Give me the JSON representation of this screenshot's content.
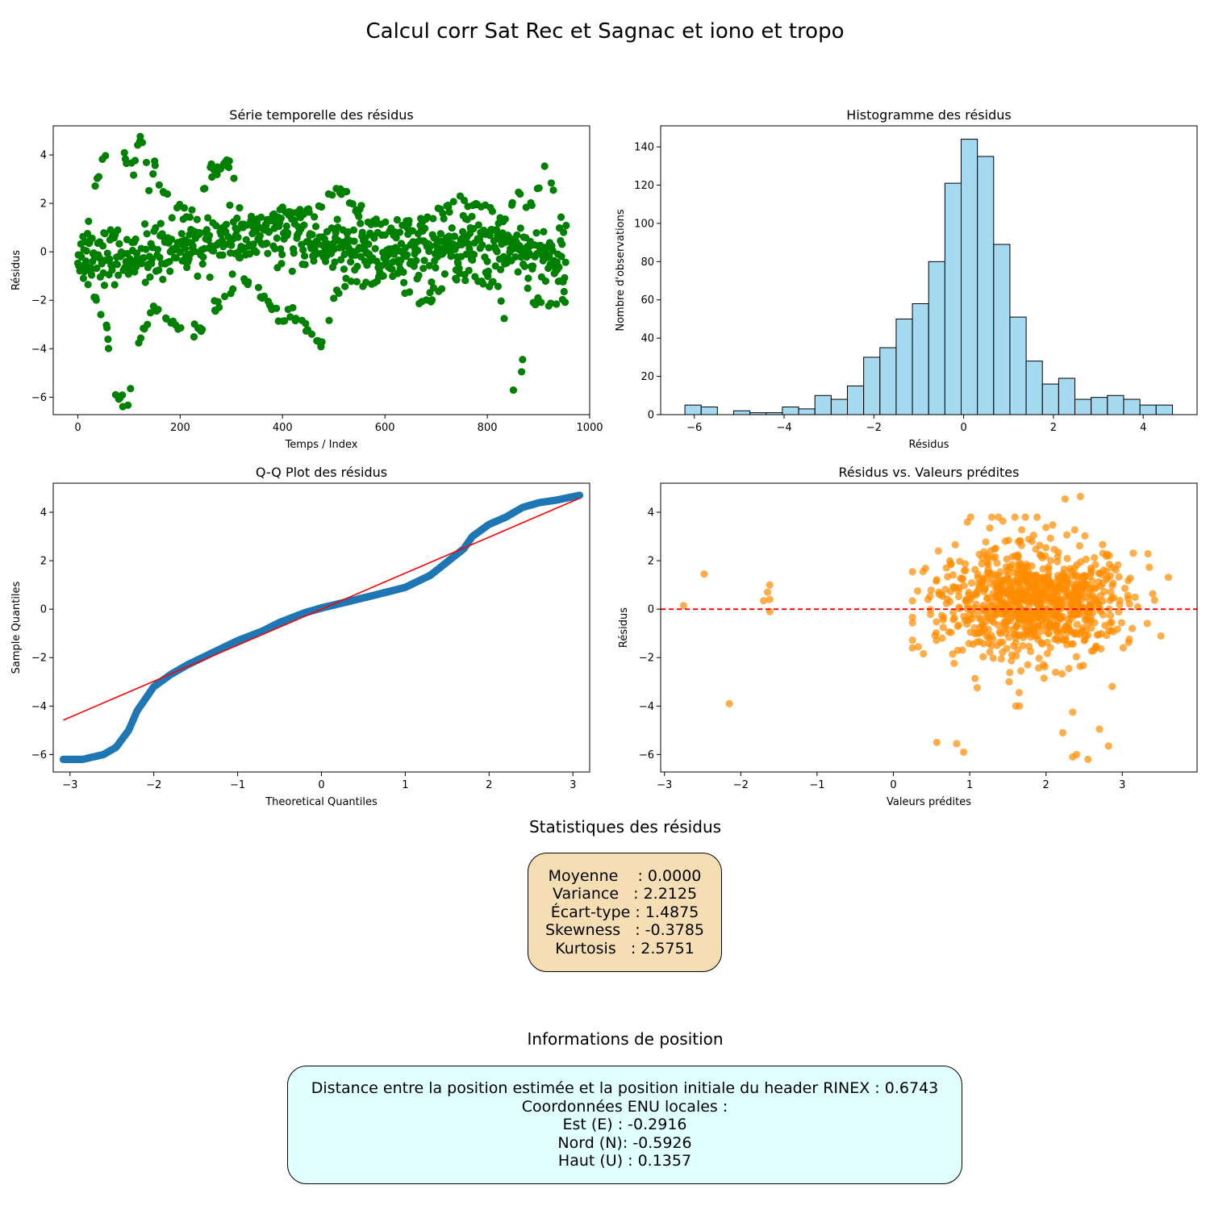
{
  "suptitle": "Calcul corr Sat Rec et Sagnac et iono et tropo",
  "chart_data": [
    {
      "type": "scatter",
      "title": "Série temporelle des résidus",
      "xlabel": "Temps / Index",
      "ylabel": "Résidus",
      "xlim": [
        -48,
        1000
      ],
      "ylim": [
        -6.72,
        5.2
      ],
      "xticks": [
        0,
        200,
        400,
        600,
        800,
        1000
      ],
      "yticks": [
        -6,
        -4,
        -2,
        0,
        2,
        4
      ],
      "n_points": 955,
      "color": "#008000",
      "description_series": [
        {
          "name": "upper band",
          "points": [
            [
              0,
              0.2
            ],
            [
              20,
              1.2
            ],
            [
              40,
              3.3
            ],
            [
              60,
              4.2
            ],
            [
              75,
              4.6
            ],
            [
              90,
              4.1
            ],
            [
              100,
              3.5
            ],
            [
              110,
              3.2
            ],
            [
              120,
              4.6
            ],
            [
              130,
              4.3
            ],
            [
              140,
              2.2
            ],
            [
              150,
              3.7
            ],
            [
              160,
              2.7
            ],
            [
              180,
              2.4
            ],
            [
              200,
              1.9
            ],
            [
              220,
              1.4
            ],
            [
              240,
              2.1
            ],
            [
              260,
              3.2
            ],
            [
              280,
              3.5
            ],
            [
              300,
              3.8
            ],
            [
              320,
              1.2
            ],
            [
              360,
              1.0
            ],
            [
              400,
              1.4
            ],
            [
              440,
              1.6
            ],
            [
              480,
              1.9
            ],
            [
              500,
              2.5
            ],
            [
              520,
              2.4
            ],
            [
              540,
              1.8
            ],
            [
              560,
              1.3
            ],
            [
              580,
              1.2
            ],
            [
              600,
              0.8
            ],
            [
              640,
              1.0
            ],
            [
              680,
              1.4
            ],
            [
              720,
              1.8
            ],
            [
              750,
              2.3
            ],
            [
              780,
              1.9
            ],
            [
              800,
              2.2
            ],
            [
              830,
              1.2
            ],
            [
              860,
              2.6
            ],
            [
              880,
              1.5
            ],
            [
              900,
              2.7
            ],
            [
              915,
              3.8
            ],
            [
              930,
              2.3
            ],
            [
              950,
              1.1
            ]
          ]
        },
        {
          "name": "lower band",
          "points": [
            [
              0,
              -0.5
            ],
            [
              20,
              -1.2
            ],
            [
              40,
              -2.2
            ],
            [
              55,
              -3.0
            ],
            [
              65,
              -4.9
            ],
            [
              75,
              -6.0
            ],
            [
              90,
              -6.2
            ],
            [
              100,
              -6.2
            ],
            [
              110,
              -5.0
            ],
            [
              120,
              -3.9
            ],
            [
              130,
              -3.0
            ],
            [
              150,
              -2.3
            ],
            [
              170,
              -2.8
            ],
            [
              200,
              -3.1
            ],
            [
              230,
              -3.4
            ],
            [
              260,
              -2.5
            ],
            [
              300,
              -1.7
            ],
            [
              340,
              -1.2
            ],
            [
              370,
              -2.1
            ],
            [
              400,
              -2.8
            ],
            [
              430,
              -2.6
            ],
            [
              460,
              -3.6
            ],
            [
              480,
              -3.8
            ],
            [
              500,
              -1.9
            ],
            [
              520,
              -1.3
            ],
            [
              560,
              -1.3
            ],
            [
              600,
              -1.0
            ],
            [
              640,
              -1.5
            ],
            [
              660,
              -2.5
            ],
            [
              700,
              -1.6
            ],
            [
              740,
              -1.1
            ],
            [
              780,
              -1.2
            ],
            [
              820,
              -1.3
            ],
            [
              840,
              -3.3
            ],
            [
              850,
              -5.5
            ],
            [
              860,
              -5.6
            ],
            [
              870,
              -4.4
            ],
            [
              880,
              -1.9
            ],
            [
              900,
              -2.2
            ],
            [
              930,
              -2.2
            ],
            [
              950,
              -2.0
            ]
          ]
        },
        {
          "name": "middle band",
          "points": [
            [
              0,
              0.1
            ],
            [
              100,
              -0.2
            ],
            [
              200,
              0.3
            ],
            [
              300,
              0.4
            ],
            [
              400,
              0.7
            ],
            [
              500,
              0.2
            ],
            [
              600,
              -0.1
            ],
            [
              700,
              0.1
            ],
            [
              800,
              0.3
            ],
            [
              900,
              0.0
            ],
            [
              950,
              -0.4
            ]
          ]
        }
      ]
    },
    {
      "type": "bar",
      "title": "Histogramme des résidus",
      "xlabel": "Résidus",
      "ylabel": "Nombre d'observations",
      "xlim": [
        -6.75,
        5.2
      ],
      "ylim": [
        0,
        151
      ],
      "xticks": [
        -6,
        -4,
        -2,
        0,
        2,
        4
      ],
      "yticks": [
        0,
        20,
        40,
        60,
        80,
        100,
        120,
        140
      ],
      "bin_start": -6.21,
      "bin_width": 0.362,
      "values": [
        5,
        4,
        0,
        2,
        1,
        1,
        4,
        3,
        10,
        8,
        15,
        30,
        35,
        50,
        58,
        80,
        121,
        144,
        135,
        89,
        51,
        28,
        16,
        19,
        8,
        9,
        10,
        8,
        5,
        5
      ],
      "color": "#87ceeb"
    },
    {
      "type": "scatter",
      "title": "Q-Q Plot des résidus",
      "xlabel": "Theoretical Quantiles",
      "ylabel": "Sample Quantiles",
      "xlim": [
        -3.2,
        3.2
      ],
      "ylim": [
        -6.72,
        5.2
      ],
      "xticks": [
        -3,
        -2,
        -1,
        0,
        1,
        2,
        3
      ],
      "yticks": [
        -6,
        -4,
        -2,
        0,
        2,
        4
      ],
      "reference_line": [
        [
          -3.08,
          -4.58
        ],
        [
          3.08,
          4.58
        ]
      ],
      "quantile_curve": [
        [
          -3.08,
          -6.2
        ],
        [
          -2.85,
          -6.2
        ],
        [
          -2.6,
          -6.0
        ],
        [
          -2.45,
          -5.7
        ],
        [
          -2.3,
          -5.0
        ],
        [
          -2.2,
          -4.2
        ],
        [
          -2.1,
          -3.7
        ],
        [
          -2.0,
          -3.2
        ],
        [
          -1.8,
          -2.7
        ],
        [
          -1.6,
          -2.3
        ],
        [
          -1.3,
          -1.8
        ],
        [
          -1.0,
          -1.3
        ],
        [
          -0.7,
          -0.9
        ],
        [
          -0.5,
          -0.55
        ],
        [
          -0.2,
          -0.15
        ],
        [
          0,
          0.05
        ],
        [
          0.3,
          0.3
        ],
        [
          0.6,
          0.55
        ],
        [
          1.0,
          0.9
        ],
        [
          1.3,
          1.4
        ],
        [
          1.5,
          1.95
        ],
        [
          1.7,
          2.5
        ],
        [
          1.8,
          3.0
        ],
        [
          2.0,
          3.5
        ],
        [
          2.2,
          3.8
        ],
        [
          2.4,
          4.2
        ],
        [
          2.6,
          4.4
        ],
        [
          2.8,
          4.5
        ],
        [
          3.08,
          4.7
        ]
      ],
      "color": "#1f77b4",
      "line_color": "#ff0000"
    },
    {
      "type": "scatter",
      "title": "Résidus vs. Valeurs prédites",
      "xlabel": "Valeurs prédites",
      "ylabel": "Résidus",
      "xlim": [
        -3.05,
        3.98
      ],
      "ylim": [
        -6.72,
        5.2
      ],
      "xticks": [
        -3,
        -2,
        -1,
        0,
        1,
        2,
        3
      ],
      "yticks": [
        -6,
        -4,
        -2,
        0,
        2,
        4
      ],
      "reference_y": 0,
      "outliers": [
        [
          -2.75,
          0.15
        ],
        [
          -2.48,
          1.45
        ],
        [
          -2.15,
          -3.9
        ],
        [
          -1.7,
          0.35
        ],
        [
          -1.65,
          0.7
        ],
        [
          -1.62,
          1.0
        ],
        [
          -1.62,
          0.4
        ],
        [
          -1.62,
          -0.1
        ],
        [
          0.57,
          -5.5
        ],
        [
          0.83,
          -5.55
        ],
        [
          0.92,
          -5.9
        ],
        [
          2.22,
          -5.1
        ],
        [
          2.35,
          -6.1
        ],
        [
          2.4,
          -6.0
        ],
        [
          2.55,
          -6.2
        ],
        [
          2.82,
          -5.65
        ],
        [
          2.7,
          -4.95
        ],
        [
          2.35,
          -4.25
        ],
        [
          2.25,
          4.55
        ],
        [
          2.45,
          4.65
        ]
      ],
      "cluster_center": [
        1.8,
        0.3
      ],
      "color": "#ff8c00",
      "line_color": "#ff0000"
    }
  ],
  "stats": {
    "title": "Statistiques des résidus",
    "lines": [
      "Moyenne    : 0.0000",
      "Variance   : 2.2125",
      "Écart-type : 1.4875",
      "Skewness   : -0.3785",
      "Kurtosis   : 2.5751"
    ]
  },
  "position": {
    "title": "Informations de position",
    "lines": [
      "Distance entre la position estimée et la position initiale du header RINEX : 0.6743",
      "Coordonnées ENU locales :",
      "Est (E) : -0.2916",
      "Nord (N): -0.5926",
      "Haut (U) : 0.1357"
    ]
  }
}
